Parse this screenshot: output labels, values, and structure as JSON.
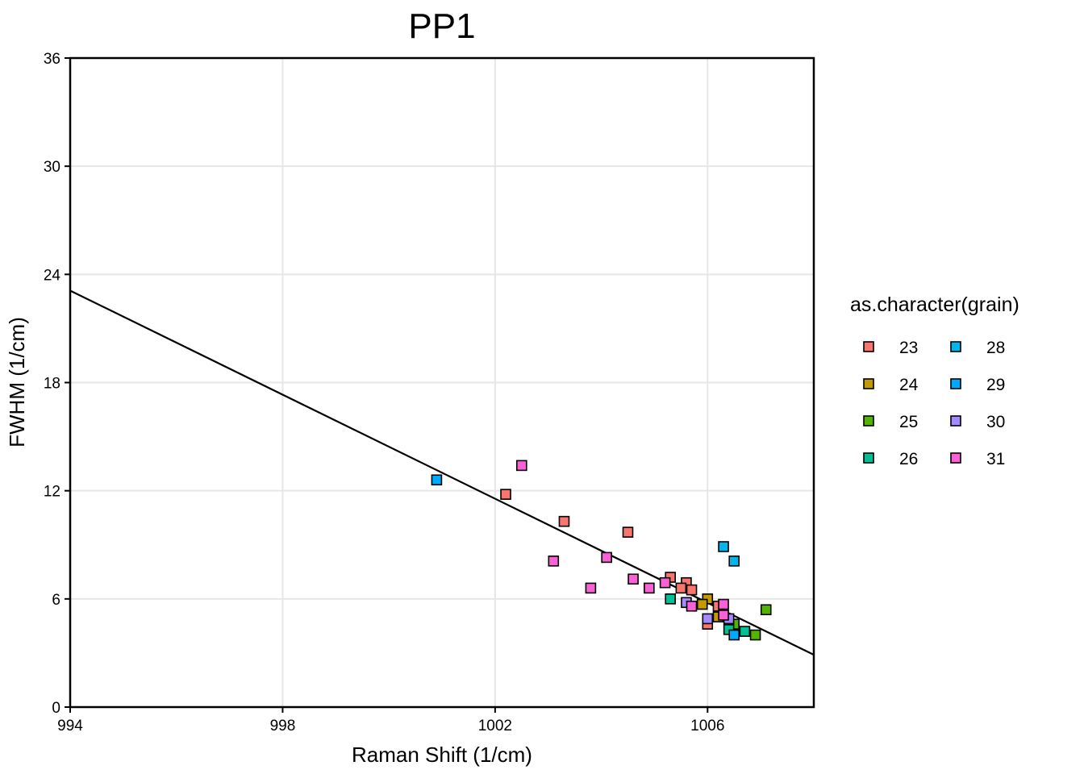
{
  "chart_data": {
    "type": "scatter",
    "title": "PP1",
    "xlabel": "Raman Shift (1/cm)",
    "ylabel": "FWHM (1/cm)",
    "xlim": [
      994,
      1008
    ],
    "ylim": [
      0,
      36
    ],
    "x_ticks": [
      994,
      998,
      1002,
      1006
    ],
    "x_tick_labels": [
      "994",
      "998",
      "1002",
      "1006"
    ],
    "y_ticks": [
      0,
      6,
      12,
      18,
      24,
      30,
      36
    ],
    "y_tick_labels": [
      "0",
      "6",
      "12",
      "18",
      "24",
      "30",
      "36"
    ],
    "grid": true,
    "legend": {
      "title": "as.character(grain)",
      "placement": "right",
      "columns": 2
    },
    "fit_line": {
      "x": [
        994,
        1008
      ],
      "y": [
        23.1,
        2.9
      ]
    },
    "series": [
      {
        "name": "23",
        "color": "#F8766D",
        "x": [
          1002.2,
          1003.3,
          1004.5,
          1005.3,
          1005.6,
          1005.7,
          1005.5,
          1006.0,
          1006.2
        ],
        "y": [
          11.8,
          10.3,
          9.7,
          7.2,
          6.9,
          6.5,
          6.6,
          4.6,
          5.6
        ]
      },
      {
        "name": "24",
        "color": "#C49A00",
        "x": [
          1006.0,
          1006.2,
          1005.9
        ],
        "y": [
          6.0,
          5.0,
          5.7
        ]
      },
      {
        "name": "25",
        "color": "#53B400",
        "x": [
          1007.1,
          1006.9,
          1006.5
        ],
        "y": [
          5.4,
          4.0,
          4.6
        ]
      },
      {
        "name": "26",
        "color": "#00C094",
        "x": [
          1005.3,
          1006.4,
          1006.7
        ],
        "y": [
          6.0,
          4.3,
          4.2
        ]
      },
      {
        "name": "28",
        "color": "#00B6EB",
        "x": [
          1006.3,
          1006.5
        ],
        "y": [
          8.9,
          8.1
        ]
      },
      {
        "name": "29",
        "color": "#00A9FF",
        "x": [
          1000.9,
          1006.5
        ],
        "y": [
          12.6,
          4.0
        ]
      },
      {
        "name": "30",
        "color": "#A58AFF",
        "x": [
          1005.6,
          1006.0,
          1006.4
        ],
        "y": [
          5.8,
          4.9,
          4.9
        ]
      },
      {
        "name": "31",
        "color": "#FB61D7",
        "x": [
          1002.5,
          1003.1,
          1003.8,
          1004.1,
          1004.6,
          1004.9,
          1005.2,
          1005.7,
          1006.3,
          1006.3
        ],
        "y": [
          13.4,
          8.1,
          6.6,
          8.3,
          7.1,
          6.6,
          6.9,
          5.6,
          5.7,
          5.1
        ]
      }
    ]
  }
}
